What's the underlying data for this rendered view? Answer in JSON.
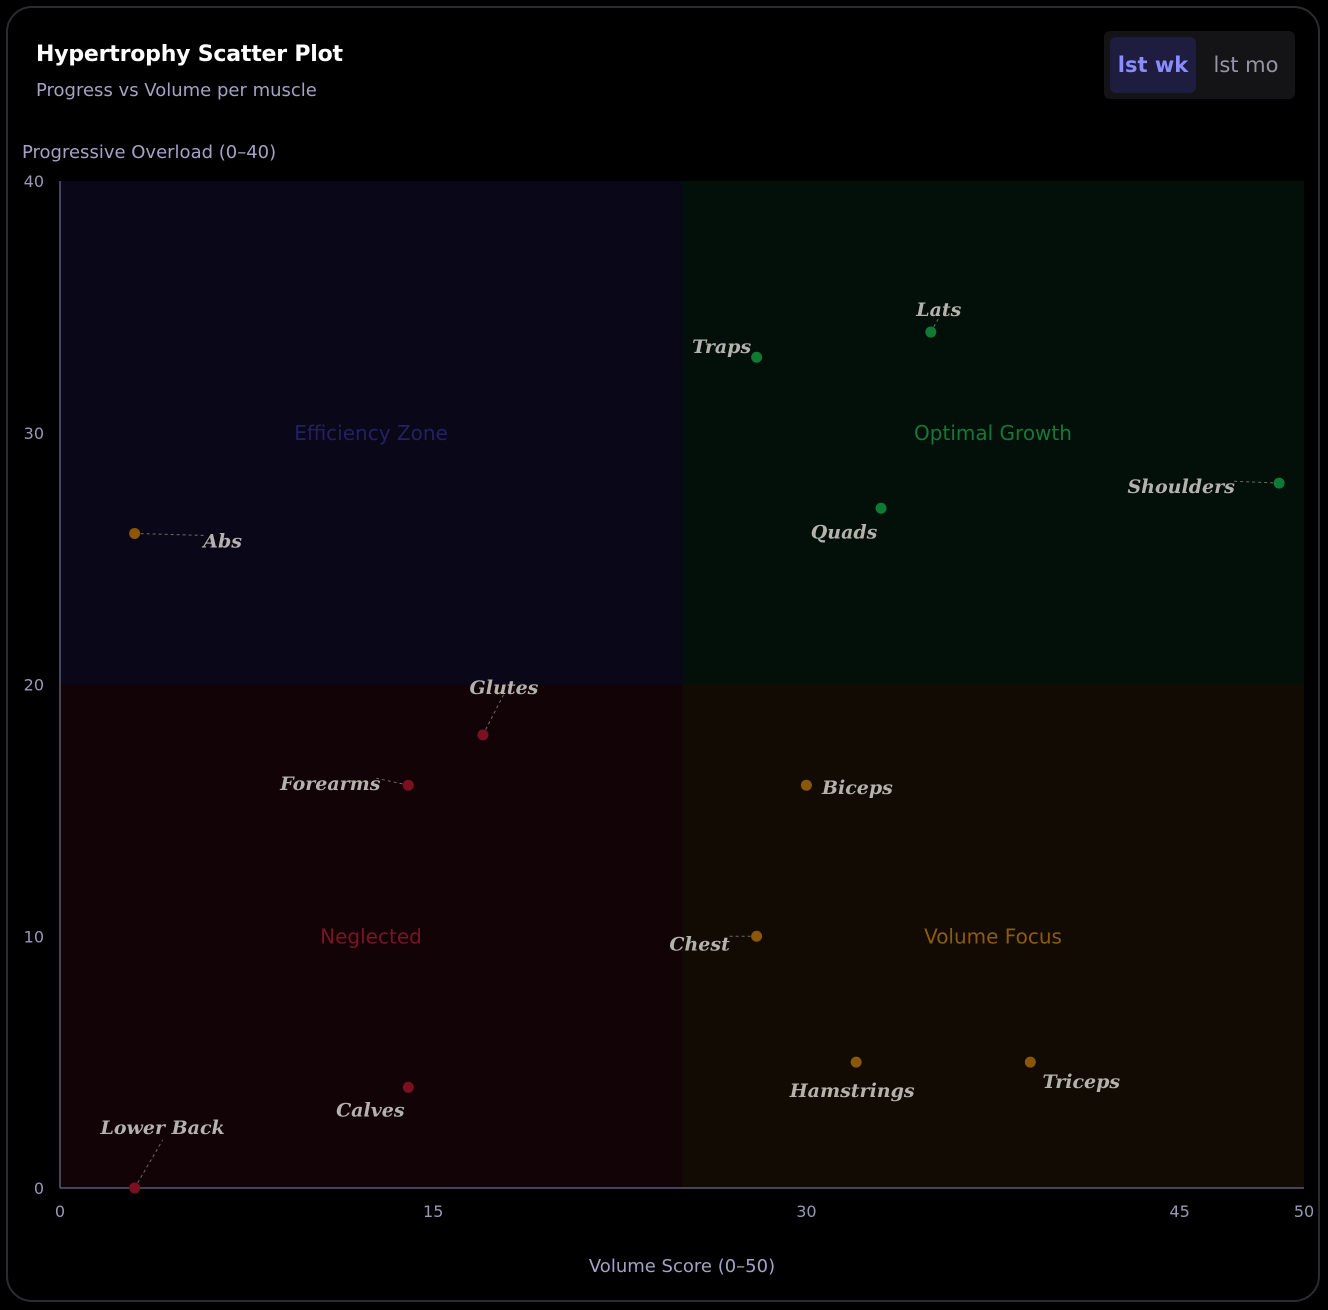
{
  "header": {
    "title": "Hypertrophy Scatter Plot",
    "subtitle": "Progress vs Volume per muscle"
  },
  "toggle": {
    "options": [
      "lst wk",
      "lst mo"
    ],
    "selected": "lst wk"
  },
  "colors": {
    "accent": "#8a8dff",
    "optimal": "#1f9a4a",
    "volume": "#b9760c",
    "neglected": "#a01830",
    "efficiency": "#2e2a7a"
  },
  "chart_data": {
    "type": "scatter",
    "xlabel": "Volume Score (0–50)",
    "ylabel": "Progressive Overload (0–40)",
    "xlim": [
      0,
      50
    ],
    "ylim": [
      0,
      40
    ],
    "xticks": [
      0,
      15,
      30,
      45,
      50
    ],
    "yticks": [
      0,
      10,
      20,
      30,
      40
    ],
    "quadrants": [
      {
        "label": "Efficiency Zone",
        "x_range": [
          0,
          25
        ],
        "y_range": [
          20,
          40
        ],
        "color": "#2e2a7a"
      },
      {
        "label": "Optimal Growth",
        "x_range": [
          25,
          50
        ],
        "y_range": [
          20,
          40
        ],
        "color": "#1f9a4a"
      },
      {
        "label": "Neglected",
        "x_range": [
          0,
          25
        ],
        "y_range": [
          0,
          20
        ],
        "color": "#a01830"
      },
      {
        "label": "Volume Focus",
        "x_range": [
          25,
          50
        ],
        "y_range": [
          0,
          20
        ],
        "color": "#b9760c"
      }
    ],
    "points": [
      {
        "name": "Lats",
        "x": 35,
        "y": 34
      },
      {
        "name": "Traps",
        "x": 28,
        "y": 33
      },
      {
        "name": "Shoulders",
        "x": 49,
        "y": 28
      },
      {
        "name": "Quads",
        "x": 33,
        "y": 27
      },
      {
        "name": "Abs",
        "x": 3,
        "y": 26
      },
      {
        "name": "Glutes",
        "x": 17,
        "y": 18
      },
      {
        "name": "Forearms",
        "x": 14,
        "y": 16
      },
      {
        "name": "Biceps",
        "x": 30,
        "y": 16
      },
      {
        "name": "Chest",
        "x": 28,
        "y": 10
      },
      {
        "name": "Hamstrings",
        "x": 32,
        "y": 5
      },
      {
        "name": "Triceps",
        "x": 39,
        "y": 5
      },
      {
        "name": "Calves",
        "x": 14,
        "y": 4
      },
      {
        "name": "Lower Back",
        "x": 3,
        "y": 0
      }
    ]
  }
}
